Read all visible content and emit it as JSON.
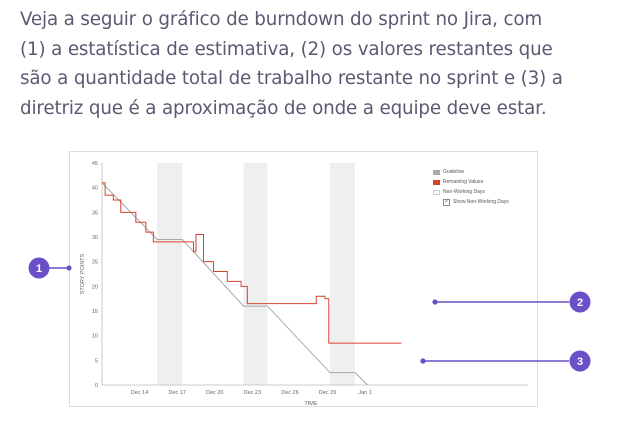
{
  "intro": {
    "lines": [
      "Veja a seguir o gráfico de burndown do sprint no Jira, com",
      "(1) a estatística de estimativa, (2) os valores restantes que",
      "são a quantidade total de trabalho restante no sprint e (3) a",
      "diretriz que é a aproximação de onde a equipe deve estar."
    ]
  },
  "colors": {
    "remaining": "#d6432b",
    "guideline": "#a8a8a8",
    "nonworking": "#efefef",
    "callout": "#6a4fc7"
  },
  "legend": {
    "guideline": "Guideline",
    "remaining": "Remaining Values",
    "nonworking": "Non-Working Days",
    "show_nonworking": "Show Non-Working Days",
    "show_nonworking_checked": true
  },
  "callouts": [
    "1",
    "2",
    "3"
  ],
  "chart_data": {
    "type": "line",
    "xlabel": "TIME",
    "ylabel": "STORY POINTS",
    "xlim": [
      0,
      34
    ],
    "ylim": [
      0,
      45
    ],
    "y_ticks": [
      0,
      5,
      10,
      15,
      20,
      25,
      30,
      35,
      40,
      45
    ],
    "x_ticks": [
      {
        "day": 3,
        "label": "Dec 14"
      },
      {
        "day": 6,
        "label": "Dec 17"
      },
      {
        "day": 9,
        "label": "Dec 20"
      },
      {
        "day": 12,
        "label": "Dec 23"
      },
      {
        "day": 15,
        "label": "Dec 26"
      },
      {
        "day": 18,
        "label": "Dec 29"
      },
      {
        "day": 21,
        "label": "Jan 1"
      }
    ],
    "non_working_days": [
      [
        4.4,
        6.4
      ],
      [
        11.3,
        13.2
      ],
      [
        18.2,
        20.2
      ]
    ],
    "series": [
      {
        "name": "Guideline",
        "points": [
          [
            0,
            41
          ],
          [
            4.4,
            29.5
          ],
          [
            6.4,
            29.5
          ],
          [
            11.3,
            16
          ],
          [
            13.2,
            16
          ],
          [
            18.2,
            2.5
          ],
          [
            20.2,
            2.5
          ],
          [
            21.2,
            0
          ]
        ]
      },
      {
        "name": "Remaining Values",
        "points": [
          [
            0,
            41
          ],
          [
            0.25,
            41
          ],
          [
            0.25,
            38.5
          ],
          [
            0.9,
            38.5
          ],
          [
            0.9,
            37.5
          ],
          [
            1.5,
            37.5
          ],
          [
            1.5,
            35
          ],
          [
            2.7,
            35
          ],
          [
            2.7,
            33
          ],
          [
            3.5,
            33
          ],
          [
            3.5,
            31
          ],
          [
            4.1,
            31
          ],
          [
            4.1,
            29
          ],
          [
            7.3,
            29
          ],
          [
            7.3,
            27
          ],
          [
            7.5,
            27
          ],
          [
            7.5,
            30.5
          ],
          [
            8.1,
            30.5
          ],
          [
            8.1,
            25
          ],
          [
            8.9,
            25
          ],
          [
            8.9,
            23
          ],
          [
            10.0,
            23
          ],
          [
            10.0,
            21
          ],
          [
            11.1,
            21
          ],
          [
            11.1,
            20
          ],
          [
            11.6,
            20
          ],
          [
            11.6,
            16.5
          ],
          [
            17.1,
            16.5
          ],
          [
            17.1,
            18
          ],
          [
            17.8,
            18
          ],
          [
            17.8,
            17.5
          ],
          [
            18.1,
            17.5
          ],
          [
            18.1,
            8.5
          ],
          [
            23.9,
            8.5
          ]
        ]
      }
    ]
  }
}
